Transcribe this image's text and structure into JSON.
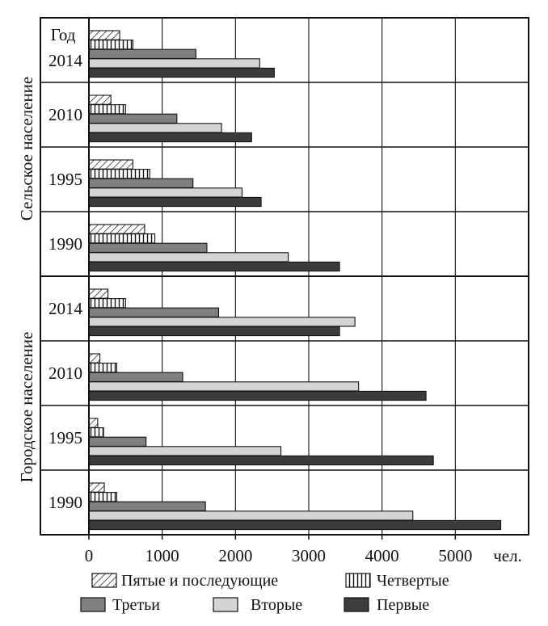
{
  "chart_data": {
    "type": "bar",
    "orientation": "horizontal",
    "x_unit": "чел.",
    "xlim": [
      0,
      6000
    ],
    "x_ticks": [
      "0",
      "1000",
      "2000",
      "3000",
      "4000",
      "5000"
    ],
    "grid": "vertical",
    "group_labels": [
      "Сельское население",
      "Городское население"
    ],
    "year_header": "Год",
    "categories": [
      {
        "group": "Сельское население",
        "year": "2014"
      },
      {
        "group": "Сельское население",
        "year": "2010"
      },
      {
        "group": "Сельское население",
        "year": "1995"
      },
      {
        "group": "Сельское население",
        "year": "1990"
      },
      {
        "group": "Городское население",
        "year": "2014"
      },
      {
        "group": "Городское население",
        "year": "2010"
      },
      {
        "group": "Городское население",
        "year": "1995"
      },
      {
        "group": "Городское население",
        "year": "1990"
      }
    ],
    "series": [
      {
        "name": "Пятые и последующие",
        "pattern": "diagonal-hatch",
        "values": [
          420,
          300,
          600,
          760,
          260,
          150,
          120,
          210
        ]
      },
      {
        "name": "Четвертые",
        "pattern": "vertical-hatch",
        "values": [
          600,
          500,
          830,
          900,
          500,
          380,
          200,
          380
        ]
      },
      {
        "name": "Третьи",
        "pattern": "solid",
        "color": "#808080",
        "values": [
          1460,
          1200,
          1420,
          1610,
          1770,
          1280,
          780,
          1590
        ]
      },
      {
        "name": "Вторые",
        "pattern": "solid",
        "color": "#d4d4d4",
        "values": [
          2330,
          1810,
          2090,
          2720,
          3630,
          3680,
          2620,
          4420
        ]
      },
      {
        "name": "Первые",
        "pattern": "solid",
        "color": "#3c3c3c",
        "values": [
          2530,
          2220,
          2350,
          3420,
          3420,
          4600,
          4700,
          5620
        ]
      }
    ],
    "legend": {
      "placement": "bottom"
    }
  }
}
